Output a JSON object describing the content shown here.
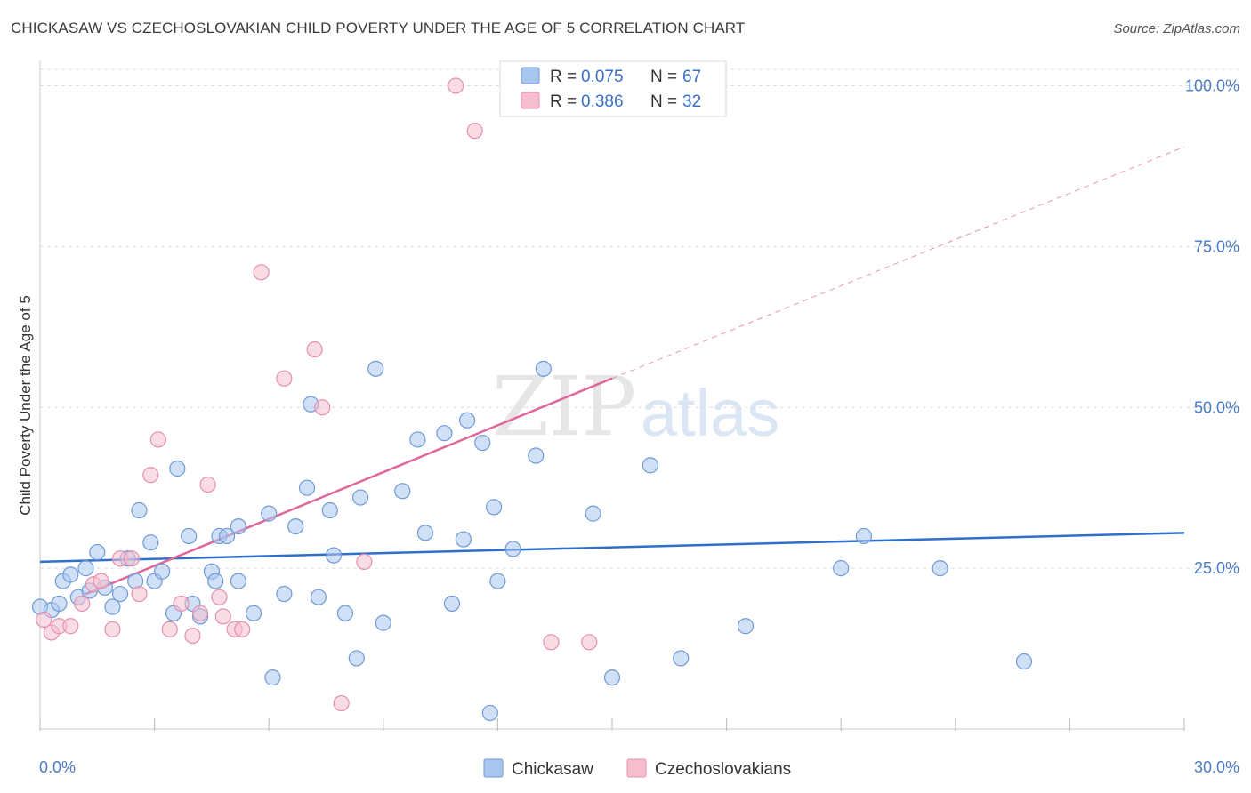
{
  "title": "CHICKASAW VS CZECHOSLOVAKIAN CHILD POVERTY UNDER THE AGE OF 5 CORRELATION CHART",
  "source": "Source: ZipAtlas.com",
  "watermark": {
    "zip": "ZIP",
    "atlas": "atlas"
  },
  "legend": {
    "r_label": "R =",
    "n_label": "N =",
    "entries": [
      {
        "r": "0.075",
        "n": "67"
      },
      {
        "r": "0.386",
        "n": "32"
      }
    ]
  },
  "bottom_legend": [
    "Chickasaw",
    "Czechoslovakians"
  ],
  "colors": {
    "chickasaw_fill": "#a9c7ee",
    "chickasaw_stroke": "#6f9ad6",
    "chickasaw_line": "#2f6fcc",
    "czech_fill": "#f6bfd0",
    "czech_stroke": "#e58fae",
    "czech_line": "#e0679a",
    "tick_label": "#4a7cc7",
    "grid": "#dddddd"
  },
  "chart_data": {
    "type": "scatter",
    "ylabel": "Child Poverty Under the Age of 5",
    "xlabel": "",
    "xlim": [
      0,
      30
    ],
    "ylim": [
      0,
      102
    ],
    "x_tick_labels": [
      "0.0%",
      "30.0%"
    ],
    "y_ticks": [
      25,
      50,
      75,
      100
    ],
    "y_tick_labels": [
      "25.0%",
      "50.0%",
      "75.0%",
      "100.0%"
    ],
    "grid": true,
    "legend_position": "top-center",
    "series": [
      {
        "name": "Chickasaw",
        "points": [
          [
            0.0,
            19.0
          ],
          [
            0.3,
            18.5
          ],
          [
            0.5,
            19.5
          ],
          [
            0.6,
            23.0
          ],
          [
            0.8,
            24.0
          ],
          [
            1.0,
            20.5
          ],
          [
            1.2,
            25.0
          ],
          [
            1.3,
            21.5
          ],
          [
            1.5,
            27.5
          ],
          [
            1.7,
            22.0
          ],
          [
            1.9,
            19.0
          ],
          [
            2.1,
            21.0
          ],
          [
            2.3,
            26.5
          ],
          [
            2.5,
            23.0
          ],
          [
            2.6,
            34.0
          ],
          [
            2.9,
            29.0
          ],
          [
            3.0,
            23.0
          ],
          [
            3.2,
            24.5
          ],
          [
            3.5,
            18.0
          ],
          [
            3.6,
            40.5
          ],
          [
            3.9,
            30.0
          ],
          [
            4.0,
            19.5
          ],
          [
            4.2,
            17.5
          ],
          [
            4.5,
            24.5
          ],
          [
            4.6,
            23.0
          ],
          [
            4.7,
            30.0
          ],
          [
            4.9,
            30.0
          ],
          [
            5.2,
            31.5
          ],
          [
            5.2,
            23.0
          ],
          [
            5.6,
            18.0
          ],
          [
            6.0,
            33.5
          ],
          [
            6.1,
            8.0
          ],
          [
            6.4,
            21.0
          ],
          [
            6.7,
            31.5
          ],
          [
            7.0,
            37.5
          ],
          [
            7.1,
            50.5
          ],
          [
            7.3,
            20.5
          ],
          [
            7.6,
            34.0
          ],
          [
            7.7,
            27.0
          ],
          [
            8.0,
            18.0
          ],
          [
            8.4,
            36.0
          ],
          [
            8.3,
            11.0
          ],
          [
            8.8,
            56.0
          ],
          [
            9.0,
            16.5
          ],
          [
            9.5,
            37.0
          ],
          [
            9.9,
            45.0
          ],
          [
            10.1,
            30.5
          ],
          [
            10.6,
            46.0
          ],
          [
            10.8,
            19.5
          ],
          [
            11.1,
            29.5
          ],
          [
            11.2,
            48.0
          ],
          [
            11.6,
            44.5
          ],
          [
            11.8,
            2.5
          ],
          [
            11.9,
            34.5
          ],
          [
            12.0,
            23.0
          ],
          [
            12.4,
            28.0
          ],
          [
            13.0,
            42.5
          ],
          [
            13.2,
            56.0
          ],
          [
            14.5,
            33.5
          ],
          [
            15.0,
            8.0
          ],
          [
            16.0,
            41.0
          ],
          [
            16.8,
            11.0
          ],
          [
            18.5,
            16.0
          ],
          [
            21.0,
            25.0
          ],
          [
            21.6,
            30.0
          ],
          [
            23.6,
            25.0
          ],
          [
            25.8,
            10.5
          ]
        ],
        "trend": {
          "x": [
            0,
            30
          ],
          "y": [
            26.0,
            30.5
          ]
        }
      },
      {
        "name": "Czechoslovakians",
        "points": [
          [
            0.1,
            17.0
          ],
          [
            0.3,
            15.0
          ],
          [
            0.5,
            16.0
          ],
          [
            0.8,
            16.0
          ],
          [
            1.1,
            19.5
          ],
          [
            1.4,
            22.5
          ],
          [
            1.6,
            23.0
          ],
          [
            1.9,
            15.5
          ],
          [
            2.1,
            26.5
          ],
          [
            2.4,
            26.5
          ],
          [
            2.6,
            21.0
          ],
          [
            2.9,
            39.5
          ],
          [
            3.1,
            45.0
          ],
          [
            3.4,
            15.5
          ],
          [
            3.7,
            19.5
          ],
          [
            4.0,
            14.5
          ],
          [
            4.2,
            18.0
          ],
          [
            4.4,
            38.0
          ],
          [
            4.7,
            20.5
          ],
          [
            4.8,
            17.5
          ],
          [
            5.1,
            15.5
          ],
          [
            5.3,
            15.5
          ],
          [
            5.8,
            71.0
          ],
          [
            6.4,
            54.5
          ],
          [
            7.2,
            59.0
          ],
          [
            7.4,
            50.0
          ],
          [
            7.9,
            4.0
          ],
          [
            8.5,
            26.0
          ],
          [
            10.9,
            100.0
          ],
          [
            11.4,
            93.0
          ],
          [
            13.4,
            13.5
          ],
          [
            14.4,
            13.5
          ]
        ],
        "trend": {
          "x": [
            1.2,
            15.0
          ],
          "y": [
            21.0,
            54.5
          ]
        },
        "trend_dashed": {
          "x": [
            15.0,
            30.0
          ],
          "y": [
            54.5,
            90.5
          ]
        }
      }
    ]
  }
}
